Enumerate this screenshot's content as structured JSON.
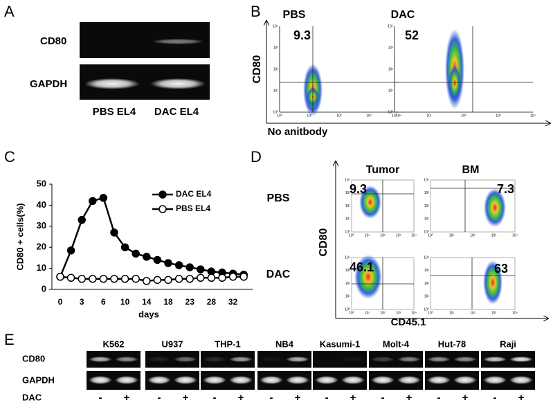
{
  "panel_a": {
    "label": "A",
    "bands": [
      "CD80",
      "GAPDH"
    ],
    "lanes": [
      "PBS EL4",
      "DAC EL4"
    ]
  },
  "panel_b": {
    "label": "B",
    "y_label": "CD80",
    "x_label": "No anitbody",
    "plots": [
      {
        "title": "PBS",
        "percent": 9.3
      },
      {
        "title": "DAC",
        "percent": 52
      }
    ],
    "axis_ticks": [
      "10⁰",
      "10¹",
      "10²",
      "10³",
      "10⁴"
    ]
  },
  "panel_c": {
    "label": "C"
  },
  "chart_data": {
    "type": "line",
    "x_label": "days",
    "y_label": "CD80 + cells(%)",
    "categories": [
      0,
      null,
      3,
      null,
      6,
      null,
      10,
      null,
      14,
      null,
      18,
      null,
      23,
      null,
      28,
      null,
      32,
      null
    ],
    "series": [
      {
        "name": "DAC EL4",
        "color": "#000000",
        "marker_fill": "#000000",
        "values": [
          6,
          18.5,
          33,
          42,
          43.5,
          27,
          20,
          17,
          15.5,
          14,
          12.5,
          11.5,
          10.5,
          9.5,
          8.5,
          8,
          7.5,
          7
        ]
      },
      {
        "name": "PBS EL4",
        "color": "#000000",
        "marker_fill": "#ffffff",
        "values": [
          6,
          5.5,
          5,
          5,
          5,
          5,
          5,
          5,
          4,
          4.5,
          4.5,
          5,
          5,
          5.5,
          5.5,
          5.5,
          6,
          6
        ]
      }
    ],
    "ylim": [
      0,
      50
    ],
    "yticks": [
      0,
      10,
      20,
      30,
      40,
      50
    ],
    "grid": false,
    "legend": "right"
  },
  "panel_d": {
    "label": "D",
    "y_label": "CD80",
    "x_label": "CD45.1",
    "columns": [
      "Tumor",
      "BM"
    ],
    "rows": [
      "PBS",
      "DAC"
    ],
    "percents": [
      [
        9.3,
        7.3
      ],
      [
        46.1,
        63
      ]
    ]
  },
  "panel_e": {
    "label": "E",
    "bands": [
      "CD80",
      "GAPDH"
    ],
    "treatment_label": "DAC",
    "treatment": [
      "-",
      "+"
    ],
    "cell_lines": [
      "K562",
      "U937",
      "THP-1",
      "NB4",
      "Kasumi-1",
      "Molt-4",
      "Hut-78",
      "Raji"
    ]
  }
}
